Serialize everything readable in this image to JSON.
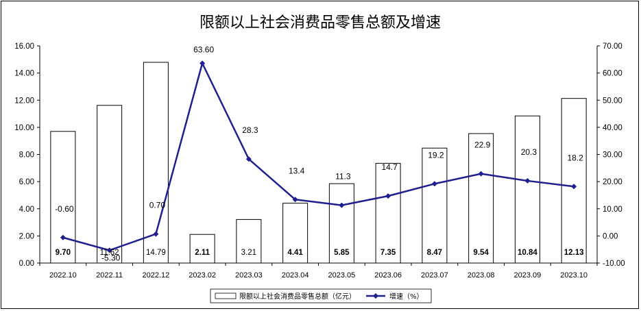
{
  "chart_data": {
    "type": "bar+line",
    "title": "限额以上社会消费品零售总额及增速",
    "categories": [
      "2022.10",
      "2022.11",
      "2022.12",
      "2023.02",
      "2023.03",
      "2023.04",
      "2023.05",
      "2023.06",
      "2023.07",
      "2023.08",
      "2023.09",
      "2023.10"
    ],
    "series": [
      {
        "name": "限额以上社会消费品零售总额（亿元）",
        "type": "bar",
        "axis": "left",
        "values": [
          9.7,
          11.62,
          14.79,
          2.11,
          3.21,
          4.41,
          5.85,
          7.35,
          8.47,
          9.54,
          10.84,
          12.13
        ],
        "labels": [
          "9.70",
          "11.62",
          "14.79",
          "2.11",
          "3.21",
          "4.41",
          "5.85",
          "7.35",
          "8.47",
          "9.54",
          "10.84",
          "12.13"
        ],
        "color": "#ffffff",
        "stroke": "#000000"
      },
      {
        "name": "增速（%）",
        "type": "line",
        "axis": "right",
        "values": [
          -0.6,
          -5.3,
          0.7,
          63.6,
          28.3,
          13.4,
          11.3,
          14.7,
          19.2,
          22.9,
          20.3,
          18.2
        ],
        "labels": [
          "-0.60",
          "-5.30",
          "0.70",
          "63.60",
          "28.3",
          "13.4",
          "11.3",
          "14.7",
          "19.2",
          "22.9",
          "20.3",
          "18.2"
        ],
        "color": "#1f1f8f"
      }
    ],
    "y_left": {
      "min": 0,
      "max": 16,
      "step": 2,
      "ticks": [
        "0.00",
        "2.00",
        "4.00",
        "6.00",
        "8.00",
        "10.00",
        "12.00",
        "14.00",
        "16.00"
      ]
    },
    "y_right": {
      "min": -10,
      "max": 70,
      "step": 10,
      "ticks": [
        "-10.00",
        "0.00",
        "10.00",
        "20.00",
        "30.00",
        "40.00",
        "50.00",
        "60.00",
        "70.00"
      ]
    },
    "grid": false,
    "legend_position": "bottom-center"
  }
}
